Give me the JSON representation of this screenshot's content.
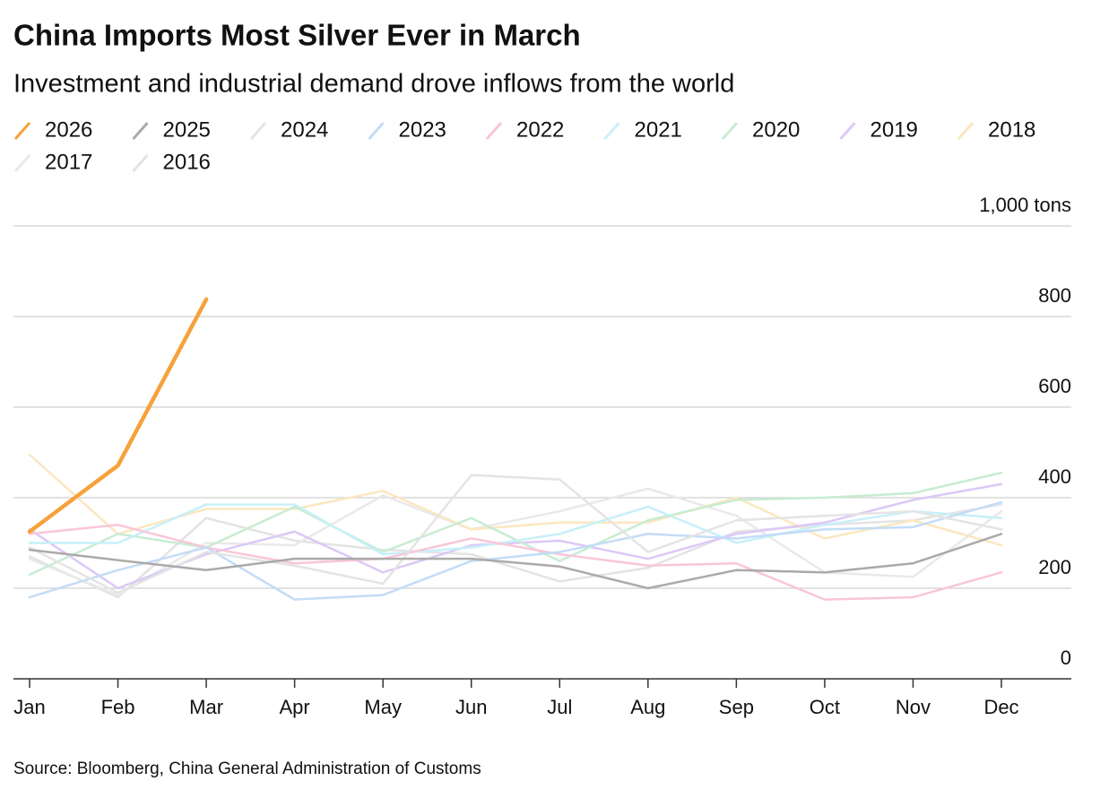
{
  "chart_data": {
    "type": "line",
    "title": "China Imports Most Silver Ever in March",
    "subtitle": "Investment and industrial demand drove inflows from the world",
    "source": "Source: Bloomberg, China General Administration of Customs",
    "categories": [
      "Jan",
      "Feb",
      "Mar",
      "Apr",
      "May",
      "Jun",
      "Jul",
      "Aug",
      "Sep",
      "Oct",
      "Nov",
      "Dec"
    ],
    "ylim": [
      0,
      1000
    ],
    "yticks": [
      0,
      200,
      400,
      600,
      800,
      {
        "value": 1000,
        "label": "1,000 tons"
      }
    ],
    "grid": true,
    "series": [
      {
        "name": "2026",
        "color": "#f7a13b",
        "values": [
          325,
          471,
          838,
          null,
          null,
          null,
          null,
          null,
          null,
          null,
          null,
          null
        ]
      },
      {
        "name": "2025",
        "color": "#aaaaaa",
        "values": [
          285,
          262,
          240,
          265,
          265,
          265,
          248,
          200,
          240,
          235,
          255,
          320
        ]
      },
      {
        "name": "2024",
        "color": "#e4e4e4",
        "values": [
          290,
          190,
          280,
          250,
          210,
          450,
          440,
          280,
          350,
          360,
          370,
          330
        ]
      },
      {
        "name": "2023",
        "color": "#c3dcf7",
        "values": [
          180,
          240,
          290,
          175,
          185,
          260,
          280,
          320,
          310,
          330,
          335,
          390
        ]
      },
      {
        "name": "2022",
        "color": "#f9c6d9",
        "values": [
          320,
          340,
          290,
          255,
          265,
          310,
          275,
          250,
          255,
          175,
          180,
          235
        ]
      },
      {
        "name": "2021",
        "color": "#c7f0f8",
        "values": [
          300,
          300,
          385,
          385,
          275,
          290,
          320,
          380,
          300,
          340,
          370,
          355
        ]
      },
      {
        "name": "2020",
        "color": "#c8ecd1",
        "values": [
          230,
          320,
          290,
          380,
          280,
          355,
          260,
          350,
          395,
          400,
          410,
          455
        ]
      },
      {
        "name": "2019",
        "color": "#dcc8f7",
        "values": [
          330,
          200,
          275,
          325,
          235,
          295,
          305,
          265,
          320,
          345,
          395,
          430
        ]
      },
      {
        "name": "2018",
        "color": "#fbe7c0",
        "values": [
          495,
          320,
          375,
          375,
          415,
          330,
          345,
          345,
          400,
          310,
          350,
          295
        ]
      },
      {
        "name": "2017",
        "color": "#e9e9e9",
        "values": [
          265,
          185,
          300,
          295,
          405,
          330,
          370,
          420,
          360,
          235,
          225,
          370
        ]
      },
      {
        "name": "2016",
        "color": "#e3e3e3",
        "values": [
          270,
          180,
          355,
          305,
          285,
          275,
          215,
          245,
          325,
          340,
          350,
          385
        ]
      }
    ]
  }
}
